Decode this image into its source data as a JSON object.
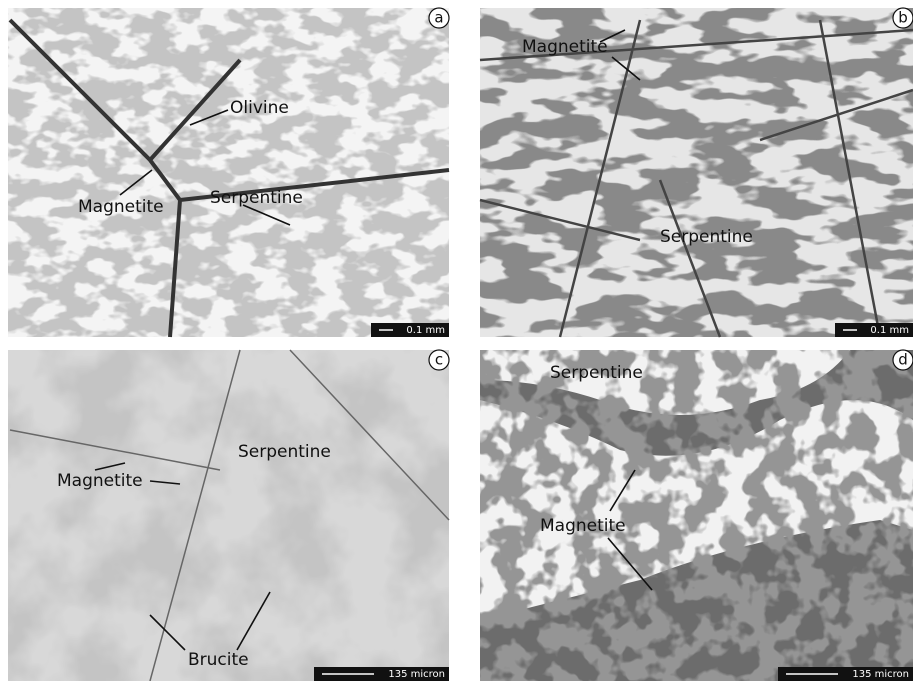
{
  "panels": [
    {
      "letter": "a",
      "scale": "0.1 mm",
      "labels": [
        "Olivine",
        "Magnetite",
        "Serpentine"
      ]
    },
    {
      "letter": "b",
      "scale": "0.1 mm",
      "labels": [
        "Magnetite",
        "Serpentine"
      ]
    },
    {
      "letter": "c",
      "scale": "135 micron",
      "labels": [
        "Serpentine",
        "Magnetite",
        "Brucite"
      ]
    },
    {
      "letter": "d",
      "scale": "135 micron",
      "labels": [
        "Serpentine",
        "Magnetite"
      ]
    }
  ]
}
